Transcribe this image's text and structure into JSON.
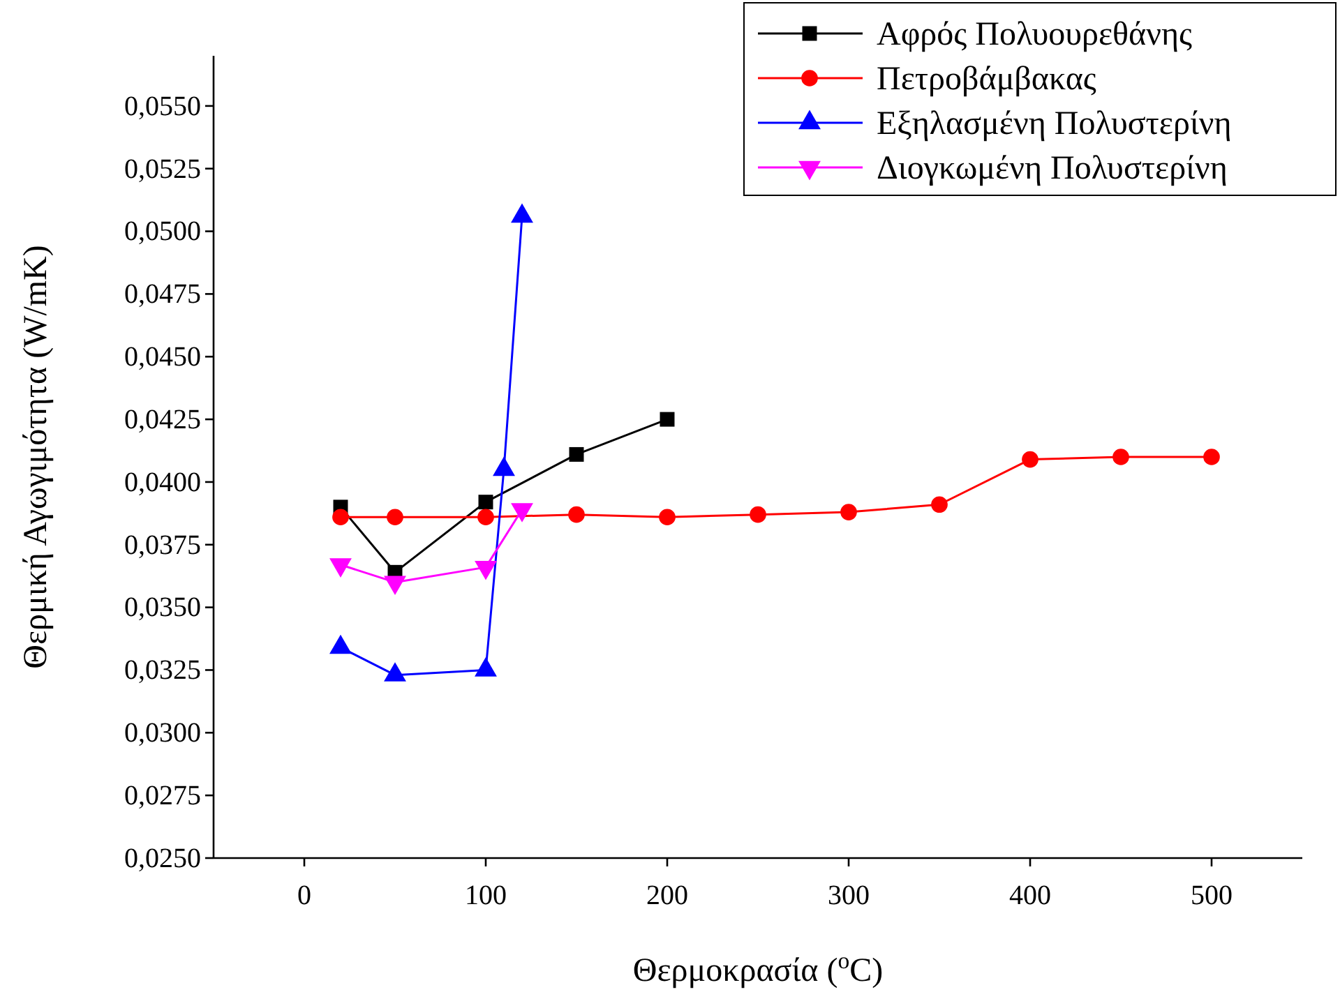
{
  "chart_data": {
    "type": "line",
    "xlabel": "Θερμοκρασία ($^{o}$C)",
    "ylabel": "Θερμική Αγωγιμότητα (W/mK)",
    "xlim": [
      -50,
      550
    ],
    "xticks": [
      0,
      100,
      200,
      300,
      400,
      500
    ],
    "ylim": [
      0.025,
      0.057
    ],
    "yticks": [
      {
        "value": 0.025,
        "label": "0,0250"
      },
      {
        "value": 0.0275,
        "label": "0,0275"
      },
      {
        "value": 0.03,
        "label": "0,0300"
      },
      {
        "value": 0.0325,
        "label": "0,0325"
      },
      {
        "value": 0.035,
        "label": "0,0350"
      },
      {
        "value": 0.0375,
        "label": "0,0375"
      },
      {
        "value": 0.04,
        "label": "0,0400"
      },
      {
        "value": 0.0425,
        "label": "0,0425"
      },
      {
        "value": 0.045,
        "label": "0,0450"
      },
      {
        "value": 0.0475,
        "label": "0,0475"
      },
      {
        "value": 0.05,
        "label": "0,0500"
      },
      {
        "value": 0.0525,
        "label": "0,0525"
      },
      {
        "value": 0.055,
        "label": "0,0550"
      }
    ],
    "grid": false,
    "legend": "top right",
    "line_style": "solid",
    "series": [
      {
        "name": "Αφρός Πολυουρεθάνης",
        "color": "#000000",
        "marker": "square",
        "x": [
          20,
          50,
          100,
          150,
          200
        ],
        "values": [
          0.039,
          0.0364,
          0.0392,
          0.0411,
          0.0425
        ]
      },
      {
        "name": "Πετροβάμβακας",
        "color": "#ff0000",
        "marker": "circle",
        "x": [
          20,
          50,
          100,
          150,
          200,
          250,
          300,
          350,
          400,
          450,
          500
        ],
        "values": [
          0.0386,
          0.0386,
          0.0386,
          0.0387,
          0.0386,
          0.0387,
          0.0388,
          0.0391,
          0.0409,
          0.041,
          0.041
        ]
      },
      {
        "name": "Εξηλασμένη Πολυστερίνη",
        "color": "#0000ff",
        "marker": "triangle",
        "x": [
          20,
          50,
          100,
          110,
          120
        ],
        "values": [
          0.0334,
          0.0323,
          0.0325,
          0.0405,
          0.0506
        ]
      },
      {
        "name": "Διογκωμένη Πολυστερίνη",
        "color": "#ff00ff",
        "marker": "triangle-down",
        "x": [
          20,
          50,
          100,
          120
        ],
        "values": [
          0.0367,
          0.036,
          0.0366,
          0.0389
        ]
      }
    ]
  }
}
